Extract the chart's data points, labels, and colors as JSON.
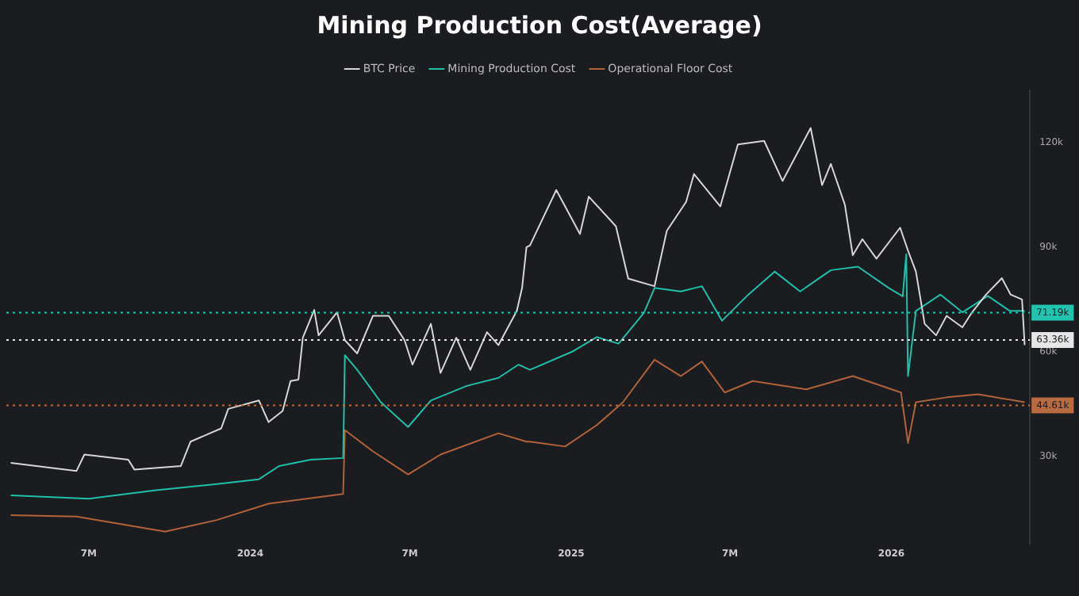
{
  "chart_data": {
    "type": "line",
    "title": "Mining Production Cost(Average)",
    "legend": "top",
    "grid": false,
    "marker": "none",
    "line_style": "solid",
    "xlim": [
      "2023-03-29",
      "2026-06-08"
    ],
    "xticks": [
      {
        "value": "2023-07-01",
        "label": "7M"
      },
      {
        "value": "2024-01-01",
        "label": "2024"
      },
      {
        "value": "2024-07-01",
        "label": "7M"
      },
      {
        "value": "2025-01-01",
        "label": "2025"
      },
      {
        "value": "2025-07-01",
        "label": "7M"
      },
      {
        "value": "2026-01-01",
        "label": "2026"
      }
    ],
    "ylim": [
      5000,
      135000
    ],
    "yticks": [
      {
        "value": 30000,
        "label": "30k"
      },
      {
        "value": 60000,
        "label": "60k"
      },
      {
        "value": 90000,
        "label": "90k"
      },
      {
        "value": 120000,
        "label": "120k"
      }
    ],
    "series": [
      {
        "name": "BTC Price",
        "color": "#d6d6d6",
        "x": [
          "2023-04-03",
          "2023-06-17",
          "2023-06-26",
          "2023-08-15",
          "2023-08-22",
          "2023-10-14",
          "2023-10-25",
          "2023-11-29",
          "2023-12-07",
          "2024-01-11",
          "2024-01-22",
          "2024-02-07",
          "2024-02-16",
          "2024-02-25",
          "2024-03-01",
          "2024-03-14",
          "2024-03-19",
          "2024-04-09",
          "2024-04-18",
          "2024-05-02",
          "2024-05-20",
          "2024-06-07",
          "2024-06-25",
          "2024-07-04",
          "2024-07-25",
          "2024-08-05",
          "2024-08-23",
          "2024-09-08",
          "2024-09-27",
          "2024-10-10",
          "2024-10-31",
          "2024-11-06",
          "2024-11-11",
          "2024-11-15",
          "2024-12-15",
          "2025-01-11",
          "2025-01-21",
          "2025-02-21",
          "2025-03-07",
          "2025-04-06",
          "2025-04-20",
          "2025-05-12",
          "2025-05-21",
          "2025-06-20",
          "2025-07-10",
          "2025-08-09",
          "2025-08-30",
          "2025-10-01",
          "2025-10-14",
          "2025-10-24",
          "2025-11-09",
          "2025-11-18",
          "2025-11-29",
          "2025-12-15",
          "2026-01-11",
          "2026-01-20",
          "2026-01-29",
          "2026-02-08",
          "2026-02-21",
          "2026-03-05",
          "2026-03-23",
          "2026-04-03",
          "2026-04-19",
          "2026-05-07",
          "2026-05-17",
          "2026-05-30",
          "2026-06-02"
        ],
        "values": [
          28100,
          25800,
          30500,
          29000,
          26200,
          27200,
          34200,
          38000,
          43600,
          46000,
          39800,
          43000,
          51600,
          52000,
          64000,
          72000,
          64700,
          71300,
          63300,
          59500,
          70300,
          70300,
          63300,
          56300,
          68000,
          53900,
          64000,
          54800,
          65600,
          61900,
          71700,
          78300,
          90000,
          90500,
          106400,
          93800,
          104500,
          96000,
          81000,
          78800,
          94700,
          103000,
          111000,
          101700,
          119500,
          120500,
          109000,
          124200,
          107800,
          113900,
          102200,
          87700,
          92300,
          86700,
          95600,
          89000,
          83000,
          68000,
          64700,
          70300,
          67000,
          71300,
          76400,
          81100,
          76400,
          75000,
          61900
        ]
      },
      {
        "name": "Mining Production Cost",
        "color": "#1fbfa8",
        "x": [
          "2023-04-03",
          "2023-07-01",
          "2023-09-14",
          "2023-11-24",
          "2024-01-11",
          "2024-02-03",
          "2024-03-10",
          "2024-04-16",
          "2024-04-18",
          "2024-05-02",
          "2024-05-29",
          "2024-06-29",
          "2024-07-25",
          "2024-09-04",
          "2024-10-10",
          "2024-11-02",
          "2024-11-15",
          "2025-01-02",
          "2025-01-30",
          "2025-02-24",
          "2025-03-25",
          "2025-04-06",
          "2025-05-06",
          "2025-05-30",
          "2025-06-22",
          "2025-07-22",
          "2025-08-21",
          "2025-09-19",
          "2025-10-24",
          "2025-11-24",
          "2025-12-29",
          "2026-01-14",
          "2026-01-18",
          "2026-01-20",
          "2026-01-29",
          "2026-02-26",
          "2026-03-23",
          "2026-04-21",
          "2026-05-16",
          "2026-06-02"
        ],
        "values": [
          18800,
          17800,
          20200,
          22000,
          23400,
          27200,
          29000,
          29500,
          59000,
          54800,
          45500,
          38400,
          46000,
          50200,
          52500,
          56300,
          54800,
          60000,
          64200,
          62300,
          71200,
          78300,
          77300,
          78800,
          68900,
          76400,
          83000,
          77300,
          83400,
          84400,
          78300,
          75900,
          88000,
          53000,
          71700,
          76400,
          71300,
          76000,
          71700,
          71700
        ]
      },
      {
        "name": "Operational Floor Cost",
        "color": "#b0623c",
        "x": [
          "2023-04-03",
          "2023-06-17",
          "2023-09-26",
          "2023-11-24",
          "2024-01-22",
          "2024-04-16",
          "2024-04-18",
          "2024-05-20",
          "2024-06-29",
          "2024-08-05",
          "2024-10-10",
          "2024-11-11",
          "2024-11-15",
          "2024-12-25",
          "2025-01-30",
          "2025-03-01",
          "2025-04-06",
          "2025-05-06",
          "2025-05-30",
          "2025-06-25",
          "2025-07-27",
          "2025-09-26",
          "2025-11-18",
          "2026-01-12",
          "2026-01-20",
          "2026-01-29",
          "2026-03-05",
          "2026-04-10",
          "2026-06-02"
        ],
        "values": [
          13100,
          12700,
          8400,
          11700,
          16400,
          19200,
          37500,
          31400,
          24800,
          30500,
          36600,
          34200,
          34200,
          32800,
          38900,
          45500,
          57700,
          53000,
          57200,
          48300,
          51600,
          49200,
          53000,
          48300,
          33800,
          45500,
          46900,
          47800,
          45500
        ]
      }
    ],
    "ref_lines": [
      {
        "axis": "y",
        "value": 71190,
        "label": "71.19k",
        "color": "#22c4b0",
        "line_style": "dotted"
      },
      {
        "axis": "y",
        "value": 63360,
        "label": "63.36k",
        "color": "#e6e6e6",
        "line_style": "dotted"
      },
      {
        "axis": "y",
        "value": 44610,
        "label": "44.61k",
        "color": "#b86a42",
        "line_style": "dotted"
      }
    ]
  }
}
